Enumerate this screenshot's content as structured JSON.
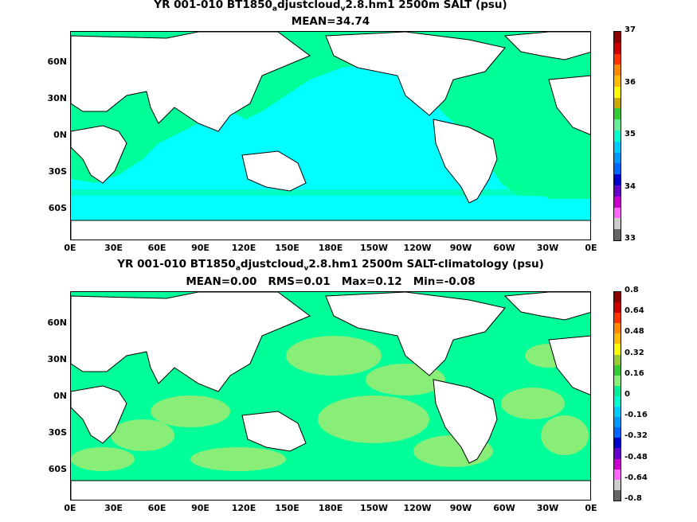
{
  "panels": [
    {
      "title_line1_a": "YR 001-010 BT1850",
      "title_line1_sub1": "a",
      "title_line1_b": "djustcloud",
      "title_line1_sub2": "v",
      "title_line1_c": "2.8.hm1 2500m SALT (psu)",
      "title_line2": "MEAN=34.74",
      "colorbar_labels": [
        "37",
        "36",
        "35",
        "34",
        "33"
      ],
      "colorbar_colors": [
        "#8b0000",
        "#cc0000",
        "#ff3300",
        "#ff8800",
        "#ffbb00",
        "#ffff00",
        "#ccaa00",
        "#33cc33",
        "#66ee99",
        "#00ffcc",
        "#00ccff",
        "#0099ff",
        "#0066ff",
        "#0000cc",
        "#6600cc",
        "#cc00cc",
        "#ff66ff",
        "#cccccc",
        "#666666"
      ]
    },
    {
      "title_line1_a": "YR 001-010 BT1850",
      "title_line1_sub1": "a",
      "title_line1_b": "djustcloud",
      "title_line1_sub2": "v",
      "title_line1_c": "2.8.hm1 2500m SALT-climatology (psu)",
      "title_line2": "MEAN=0.00   RMS=0.01   Max=0.12   Min=-0.08",
      "colorbar_labels": [
        "0.8",
        "0.64",
        "0.48",
        "0.32",
        "0.16",
        "0",
        "-0.16",
        "-0.32",
        "-0.48",
        "-0.64",
        "-0.8"
      ],
      "colorbar_colors": [
        "#8b0000",
        "#cc0000",
        "#ff3300",
        "#ff8800",
        "#ffbb00",
        "#ffff00",
        "#99cc33",
        "#33cc33",
        "#88ee77",
        "#00ee99",
        "#00ffcc",
        "#00ccff",
        "#0099ff",
        "#0066ff",
        "#0000cc",
        "#6600cc",
        "#cc00cc",
        "#ff66ff",
        "#cccccc",
        "#666666"
      ]
    }
  ],
  "lat_labels": [
    "60N",
    "30N",
    "0N",
    "30S",
    "60S"
  ],
  "lon_labels": [
    "0E",
    "30E",
    "60E",
    "90E",
    "120E",
    "150E",
    "180E",
    "150W",
    "120W",
    "90W",
    "60W",
    "30W",
    "0E"
  ],
  "colors": {
    "panel1_ocean": "#00ffff",
    "panel1_atlantic": "#00ff99",
    "panel2_base": "#00ff99",
    "panel2_patch": "#88ee77",
    "land": "#ffffff"
  }
}
